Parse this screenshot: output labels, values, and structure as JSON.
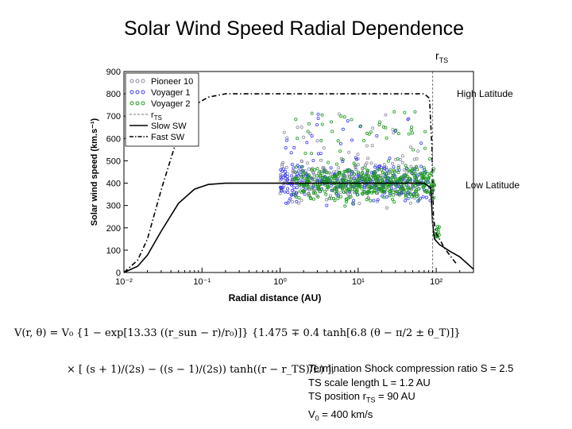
{
  "page": {
    "title": "Solar Wind Speed Radial Dependence",
    "rts_label": "r",
    "rts_sub": "TS",
    "high_latitude": "High Latitude",
    "low_latitude": "Low Latitude"
  },
  "formula": {
    "line1": "V(r, θ) = V₀ {1 − exp[13.33 ((r_sun − r)/r₀)]} {1.475 ∓ 0.4 tanh[6.8 (θ − π/2 ± θ_T)]}",
    "line2": "× [ (s + 1)/(2s) − ((s − 1)/(2s)) tanh((r − r_TS)/L) ],"
  },
  "params": {
    "line1": "Termination Shock compression ratio S = 2.5",
    "line2": "TS scale length L = 1.2 AU",
    "line3_pre": "TS position r",
    "line3_sub": "TS",
    "line3_post": " = 90 AU",
    "line4_pre": "V",
    "line4_sub": "0",
    "line4_post": " = 400 km/s"
  },
  "chart_data": {
    "type": "scatter",
    "title": "",
    "xlabel": "Radial distance (AU)",
    "ylabel": "Solar wind speed (km.s⁻¹)",
    "xscale": "log",
    "xlim": [
      0.01,
      300
    ],
    "ylim": [
      0,
      900
    ],
    "xticks": [
      {
        "value": 0.01,
        "label": "10⁻²"
      },
      {
        "value": 0.1,
        "label": "10⁻¹"
      },
      {
        "value": 1,
        "label": "10⁰"
      },
      {
        "value": 10,
        "label": "10¹"
      },
      {
        "value": 100,
        "label": "10²"
      }
    ],
    "yticks": [
      0,
      100,
      200,
      300,
      400,
      500,
      600,
      700,
      800,
      900
    ],
    "legend_position": "top-left",
    "colors": {
      "pioneer10": "#8a8aa0",
      "voyager1": "#3a3aff",
      "voyager2": "#1a9a1a",
      "rts": "#777777",
      "slow": "#000000",
      "fast": "#000000"
    },
    "series": [
      {
        "name": "Pioneer 10",
        "kind": "scatter",
        "x_range": [
          1,
          60
        ],
        "y_range": [
          270,
          780
        ]
      },
      {
        "name": "Voyager 1",
        "kind": "scatter",
        "x_range": [
          1,
          85
        ],
        "y_range": [
          280,
          720
        ]
      },
      {
        "name": "Voyager 2",
        "kind": "scatter",
        "x_range": [
          1.5,
          110
        ],
        "y_range": [
          160,
          720
        ]
      },
      {
        "name": "r_TS",
        "kind": "vline",
        "x": 90
      },
      {
        "name": "Slow SW",
        "kind": "line",
        "x": [
          0.01,
          0.015,
          0.02,
          0.03,
          0.05,
          0.08,
          0.12,
          0.2,
          0.3,
          1,
          10,
          70,
          85,
          90,
          95,
          110,
          150,
          200,
          300
        ],
        "y": [
          0,
          28,
          78,
          185,
          310,
          373,
          394,
          400,
          400,
          400,
          400,
          400,
          380,
          220,
          150,
          125,
          95,
          70,
          15
        ]
      },
      {
        "name": "Fast SW",
        "kind": "line",
        "x": [
          0.01,
          0.015,
          0.02,
          0.03,
          0.05,
          0.08,
          0.12,
          0.2,
          0.3,
          1,
          10,
          70,
          82,
          88,
          92,
          100,
          130,
          180
        ],
        "y": [
          0,
          55,
          150,
          370,
          620,
          750,
          785,
          800,
          800,
          800,
          800,
          800,
          780,
          560,
          240,
          175,
          105,
          40
        ]
      }
    ]
  }
}
